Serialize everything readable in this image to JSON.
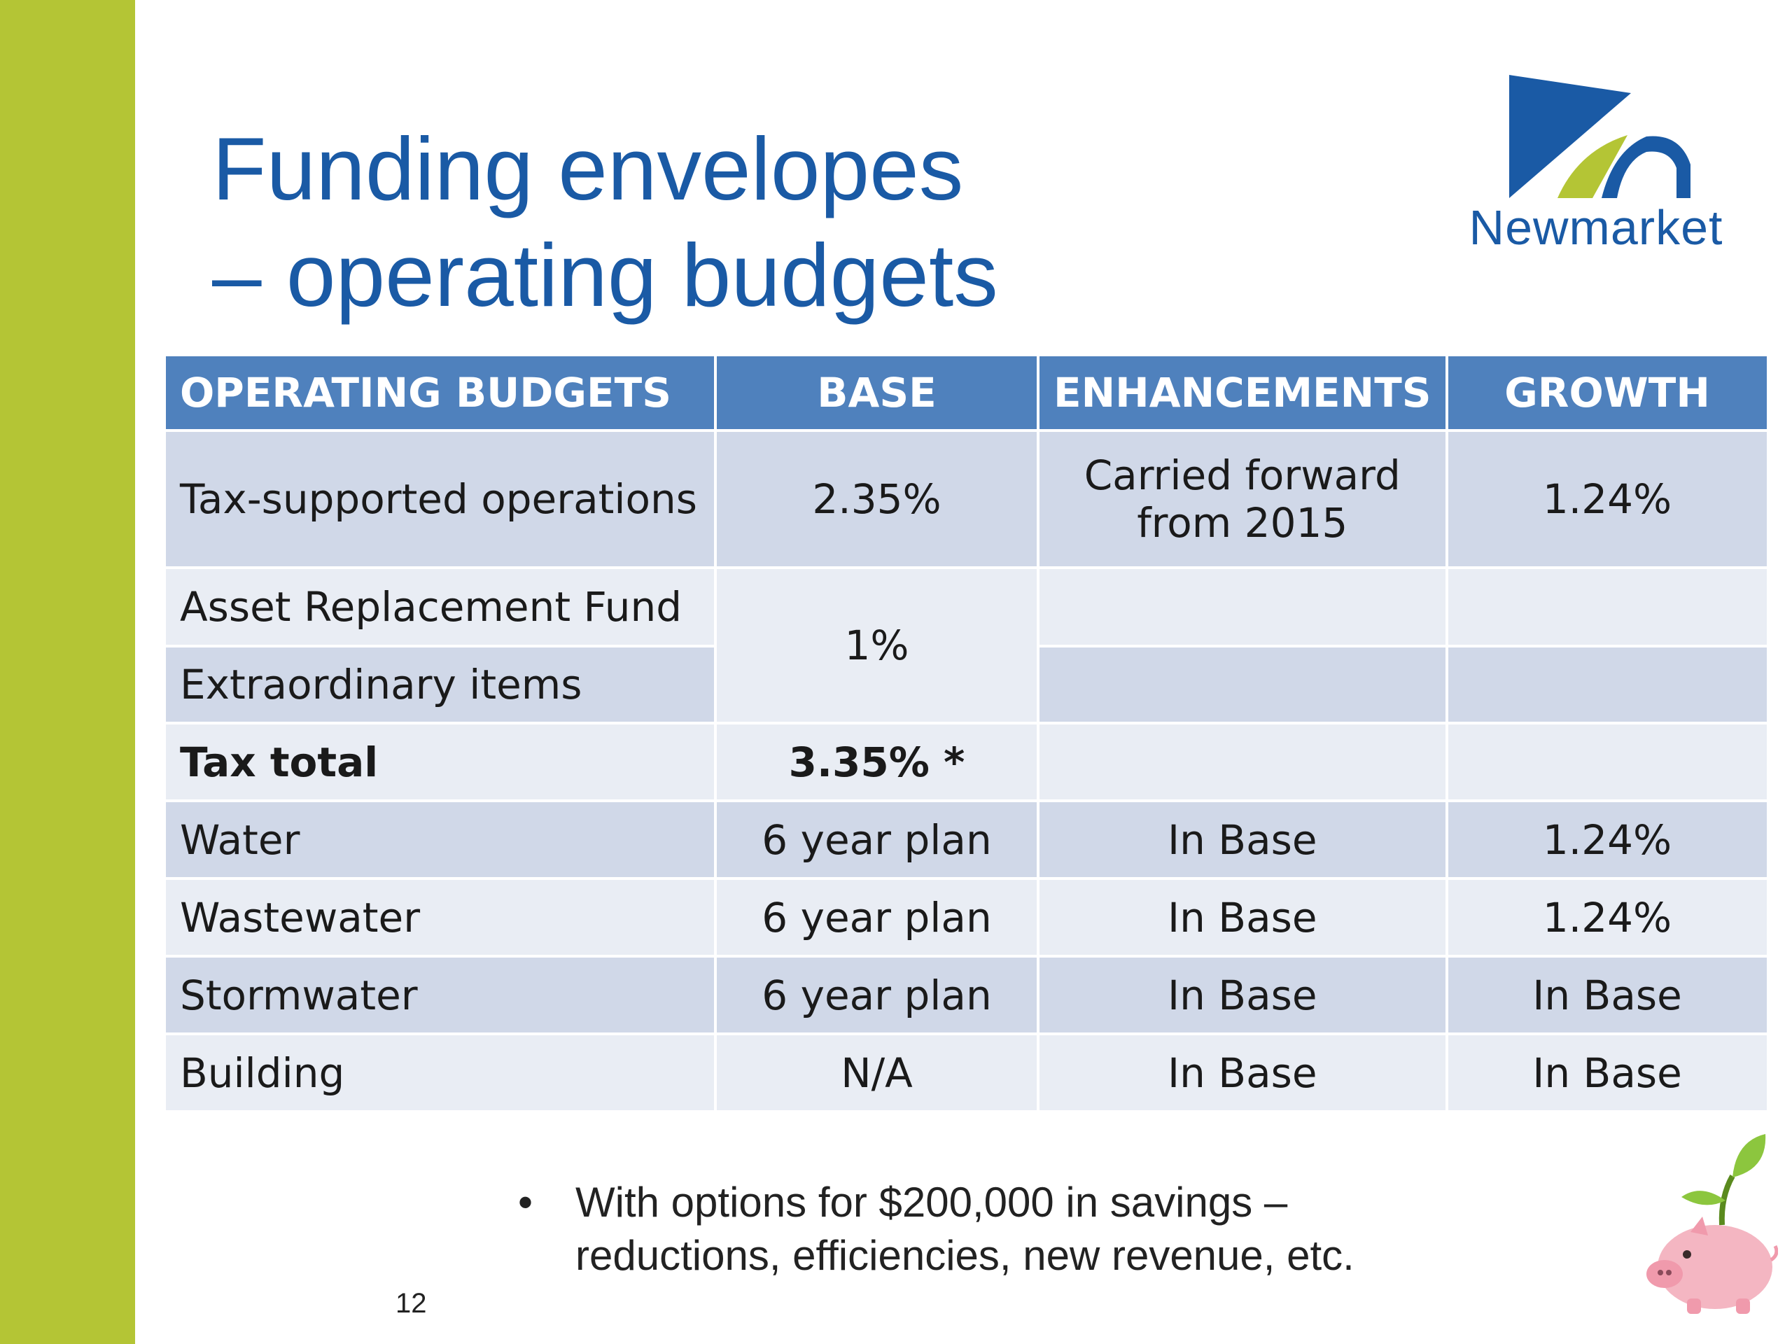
{
  "title": {
    "line1": "Funding envelopes",
    "line2": "– operating budgets"
  },
  "logo": {
    "text": "Newmarket",
    "colors": {
      "blue": "#1a5aa5",
      "green": "#b4c535"
    }
  },
  "table": {
    "headers": [
      "OPERATING BUDGETS",
      "BASE",
      "ENHANCEMENTS",
      "GROWTH"
    ],
    "rows": [
      {
        "label": "Tax-supported operations",
        "base": "2.35%",
        "enhancements": "Carried forward from 2015",
        "growth": "1.24%"
      },
      {
        "label": "Asset Replacement Fund",
        "base": "1%",
        "enhancements": "",
        "growth": ""
      },
      {
        "label": "Extraordinary items",
        "enhancements": "",
        "growth": ""
      },
      {
        "label": "Tax total",
        "base": "3.35% *",
        "enhancements": "",
        "growth": ""
      },
      {
        "label": "Water",
        "base": "6 year plan",
        "enhancements": "In Base",
        "growth": "1.24%"
      },
      {
        "label": "Wastewater",
        "base": "6 year plan",
        "enhancements": "In Base",
        "growth": "1.24%"
      },
      {
        "label": "Stormwater",
        "base": "6 year plan",
        "enhancements": "In Base",
        "growth": "In Base"
      },
      {
        "label": "Building",
        "base": "N/A",
        "enhancements": "In Base",
        "growth": "In Base"
      }
    ],
    "colors": {
      "header": "#4f81bd",
      "row_dark": "#d0d8e8",
      "row_light": "#e9edf4",
      "na_red": "#ee1111"
    }
  },
  "bullet": {
    "text": "With options for $200,000 in savings – reductions, efficiencies, new revenue, etc."
  },
  "page_number": "12",
  "decorations": {
    "side_bar_color": "#b4c535",
    "piggy_icon": "piggy-bank-sprout-icon"
  }
}
